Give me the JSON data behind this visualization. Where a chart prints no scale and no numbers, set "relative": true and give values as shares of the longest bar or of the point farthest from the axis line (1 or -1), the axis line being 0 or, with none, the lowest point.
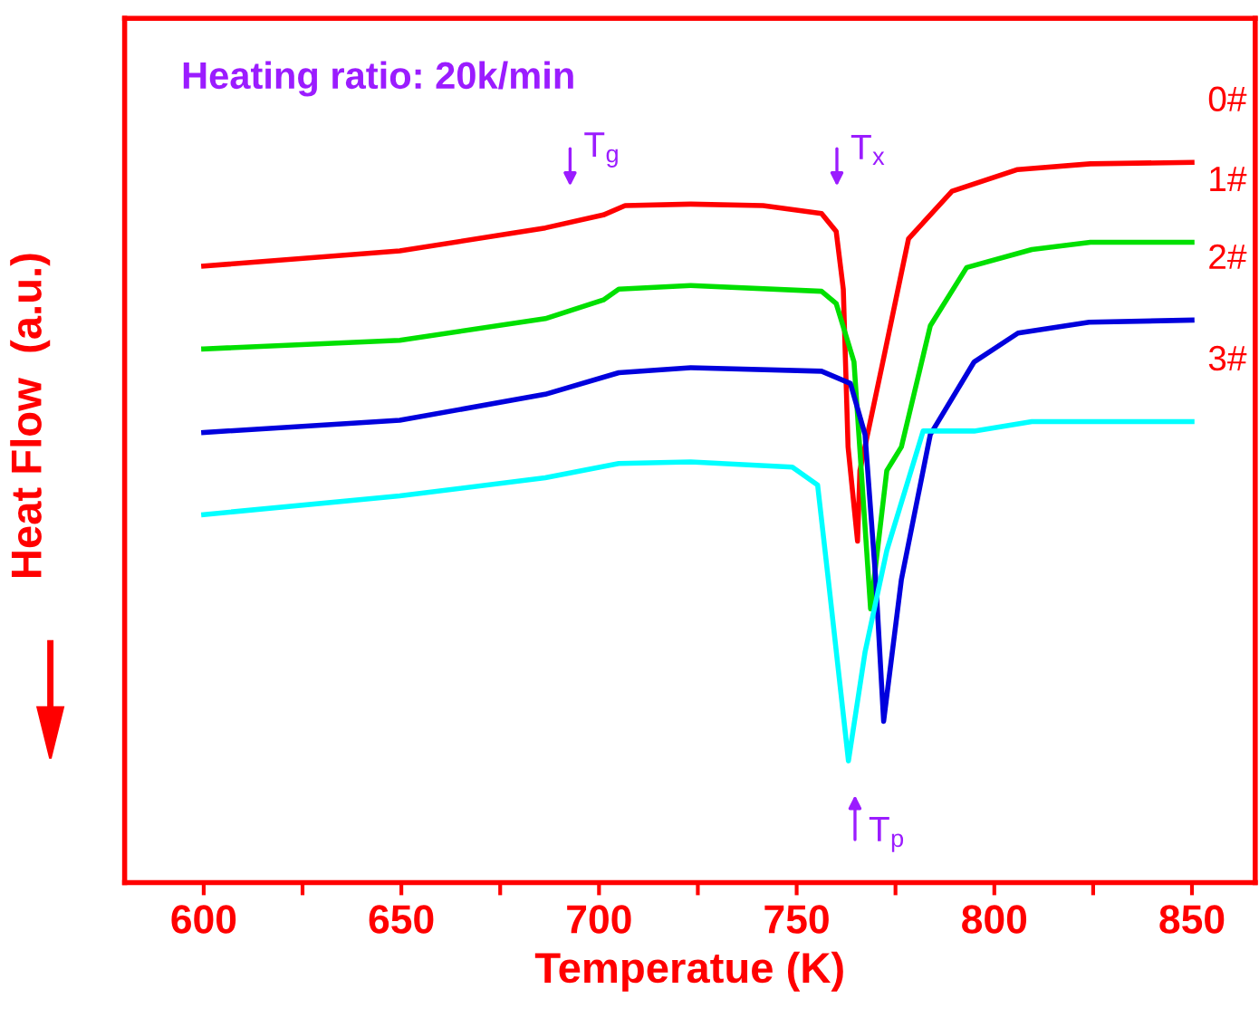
{
  "chart_data": {
    "type": "line",
    "relative": true,
    "xlabel": "Temperatue (K)",
    "ylabel": "Heat Flow  (a.u.)",
    "xlim": [
      580,
      866
    ],
    "xticks": [
      600,
      {
        "value": 625,
        "label": null
      },
      650,
      {
        "value": 675,
        "label": null
      },
      700,
      {
        "value": 725,
        "label": null
      },
      750,
      {
        "value": 775,
        "label": null
      },
      800,
      {
        "value": 825,
        "label": null
      },
      850
    ],
    "tick_labels": "x",
    "grid": false,
    "legend": false,
    "marker": "none",
    "line_style": "solid",
    "annotations": [
      "Heating ratio: 20k/min",
      "T$_{g}$",
      "T$_{x}$",
      "T$_{p}$"
    ],
    "series": [
      {
        "name": "0#",
        "color": "#ff0000",
        "x": [
          600,
          649.6,
          686.4,
          701.1,
          706.6,
          723.2,
          741.5,
          756.3,
          760,
          761.8,
          763,
          765.4,
          766,
          771.8,
          778.3,
          789.3,
          805.9,
          824.3,
          850
        ],
        "values": [
          0.856,
          0.877,
          0.909,
          0.927,
          0.94,
          0.942,
          0.94,
          0.929,
          0.904,
          0.824,
          0.605,
          0.474,
          0.572,
          0.723,
          0.894,
          0.96,
          0.99,
          0.998,
          1.0
        ]
      },
      {
        "name": "1#",
        "color": "#00e000",
        "x": [
          600,
          649.6,
          686.4,
          701.1,
          705,
          723.2,
          756.3,
          760,
          764.5,
          768.7,
          772.8,
          776.5,
          783.8,
          793,
          809.5,
          824.3,
          850
        ],
        "values": [
          0.741,
          0.753,
          0.783,
          0.809,
          0.824,
          0.829,
          0.821,
          0.804,
          0.723,
          0.38,
          0.572,
          0.605,
          0.773,
          0.854,
          0.879,
          0.889,
          0.889
        ]
      },
      {
        "name": "2#",
        "color": "#0000dd",
        "x": [
          600,
          649.6,
          686.4,
          705,
          723.2,
          756.3,
          763.6,
          767.3,
          770,
          772,
          776.5,
          783.8,
          794.9,
          806,
          824,
          850
        ],
        "values": [
          0.625,
          0.642,
          0.678,
          0.708,
          0.715,
          0.71,
          0.693,
          0.622,
          0.421,
          0.224,
          0.421,
          0.622,
          0.723,
          0.763,
          0.778,
          0.781
        ]
      },
      {
        "name": "3#",
        "color": "#00ffff",
        "x": [
          600,
          649.6,
          686.4,
          705,
          723.2,
          748.9,
          755.3,
          758,
          763.1,
          767.3,
          772.8,
          782,
          794.9,
          809.5,
          850
        ],
        "values": [
          0.511,
          0.537,
          0.562,
          0.582,
          0.584,
          0.577,
          0.552,
          0.421,
          0.169,
          0.32,
          0.461,
          0.627,
          0.627,
          0.64,
          0.64
        ]
      }
    ]
  }
}
